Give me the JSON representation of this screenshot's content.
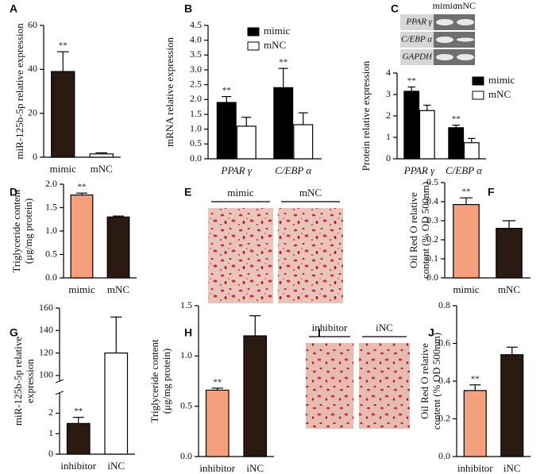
{
  "chart_data": [
    {
      "type": "bar",
      "panel_label": "A",
      "ylabel": [
        "miR-125b-5p relative expression"
      ],
      "categories": [
        "mimic",
        "mNC"
      ],
      "values": [
        39,
        1.5
      ],
      "errors": [
        9,
        0.5
      ],
      "colors": [
        "#2b1a12",
        "#ffffff"
      ],
      "significance": [
        "**",
        null
      ],
      "ylim": [
        0,
        60
      ],
      "yticks": [
        0,
        20,
        40,
        60
      ]
    },
    {
      "type": "bar",
      "panel_label": "B",
      "ylabel": [
        "mRNA relative expression"
      ],
      "categories": [
        "PPAR γ",
        "C/EBP α"
      ],
      "series": [
        {
          "name": "mimic",
          "color": "#000000",
          "values": [
            1.9,
            2.4
          ],
          "errors": [
            0.2,
            0.65
          ],
          "significance": [
            "**",
            "**"
          ]
        },
        {
          "name": "mNC",
          "color": "#ffffff",
          "values": [
            1.1,
            1.15
          ],
          "errors": [
            0.3,
            0.4
          ]
        }
      ],
      "ylim": [
        0,
        4.5
      ],
      "yticks": [
        {
          "value": 0,
          "label": "0.0"
        },
        0.5,
        {
          "value": 1,
          "label": "1.0"
        },
        1.5,
        {
          "value": 2,
          "label": "2.0"
        },
        2.5,
        {
          "value": 3,
          "label": "3.0"
        },
        3.5,
        {
          "value": 4,
          "label": "4.0"
        },
        4.5
      ]
    },
    {
      "type": "bar",
      "panel_label": "C",
      "ylabel": [
        "Protein relative expression"
      ],
      "categories": [
        "PPAR γ",
        "C/EBP α"
      ],
      "series": [
        {
          "name": "mimic",
          "color": "#000000",
          "values": [
            3.15,
            1.45
          ],
          "errors": [
            0.2,
            0.12
          ],
          "significance": [
            "**",
            "**"
          ]
        },
        {
          "name": "mNC",
          "color": "#ffffff",
          "values": [
            2.25,
            0.75
          ],
          "errors": [
            0.25,
            0.2
          ]
        }
      ],
      "ylim": [
        0,
        4
      ],
      "yticks": [
        0,
        1,
        2,
        3,
        4
      ],
      "blot": {
        "lanes": [
          "mimic",
          "mNC"
        ],
        "rows": [
          "PPAR γ",
          "C/EBP α",
          "GAPDH"
        ]
      }
    },
    {
      "type": "bar",
      "panel_label": "D",
      "ylabel": [
        "Triglyceride content",
        "(μg/mg protein)"
      ],
      "categories": [
        "mimic",
        "mNC"
      ],
      "values": [
        1.77,
        1.3
      ],
      "errors": [
        0.04,
        0.02
      ],
      "colors": [
        "#f4a07c",
        "#2b1a12"
      ],
      "significance": [
        "**",
        null
      ],
      "ylim": [
        0,
        2
      ],
      "yticks": [
        {
          "value": 0,
          "label": "0.0"
        },
        0.5,
        {
          "value": 1,
          "label": "1.0"
        },
        1.5,
        {
          "value": 2,
          "label": "2.0"
        }
      ]
    },
    {
      "type": "bar",
      "panel_label": "F",
      "ylabel": [
        "Oil Red O relative",
        "content (% OD 500nm)"
      ],
      "categories": [
        "mimic",
        "mNC"
      ],
      "values": [
        0.385,
        0.26
      ],
      "errors": [
        0.035,
        0.04
      ],
      "colors": [
        "#f4a07c",
        "#2b1a12"
      ],
      "significance": [
        "**",
        null
      ],
      "ylim": [
        0,
        0.5
      ],
      "yticks": [
        {
          "value": 0,
          "label": "0.0"
        },
        0.1,
        0.2,
        0.3,
        0.4,
        0.5
      ]
    },
    {
      "type": "bar",
      "panel_label": "G",
      "ylabel": [
        "miR-125b-5p relative",
        "expression"
      ],
      "categories": [
        "inhibitor",
        "iNC"
      ],
      "values": [
        1.5,
        120
      ],
      "errors": [
        0.3,
        32
      ],
      "colors": [
        "#2b1a12",
        "#ffffff"
      ],
      "significance": [
        "**",
        null
      ],
      "segments": [
        {
          "ylim": [
            0,
            3
          ],
          "yticks": [
            0,
            1,
            2
          ]
        },
        {
          "ylim": [
            95,
            160
          ],
          "yticks": [
            100,
            120,
            140,
            160
          ]
        }
      ]
    },
    {
      "type": "bar",
      "panel_label": "H",
      "ylabel": [
        "Triglyceride content",
        "(μg/mg protein)"
      ],
      "categories": [
        "inhibitor",
        "iNC"
      ],
      "values": [
        0.66,
        1.2
      ],
      "errors": [
        0.02,
        0.2
      ],
      "colors": [
        "#f4a07c",
        "#2b1a12"
      ],
      "significance": [
        "**",
        null
      ],
      "ylim": [
        0,
        1.5
      ],
      "yticks": [
        {
          "value": 0,
          "label": "0.0"
        },
        0.5,
        {
          "value": 1,
          "label": "1.0"
        },
        1.5
      ]
    },
    {
      "type": "bar",
      "panel_label": "J",
      "ylabel": [
        "Oil Red O relative",
        "content (% OD 500nm)"
      ],
      "categories": [
        "inhibitor",
        "iNC"
      ],
      "values": [
        0.35,
        0.54
      ],
      "errors": [
        0.03,
        0.04
      ],
      "colors": [
        "#f4a07c",
        "#2b1a12"
      ],
      "significance": [
        "**",
        null
      ],
      "ylim": [
        0,
        0.8
      ],
      "yticks": [
        {
          "value": 0,
          "label": "0.0"
        },
        0.2,
        0.4,
        0.6,
        0.8
      ]
    }
  ],
  "image_panels": [
    {
      "panel_label": "E",
      "lanes": [
        "mimic",
        "mNC"
      ]
    },
    {
      "panel_label": "I",
      "lanes": [
        "inhibitor",
        "iNC"
      ]
    }
  ]
}
